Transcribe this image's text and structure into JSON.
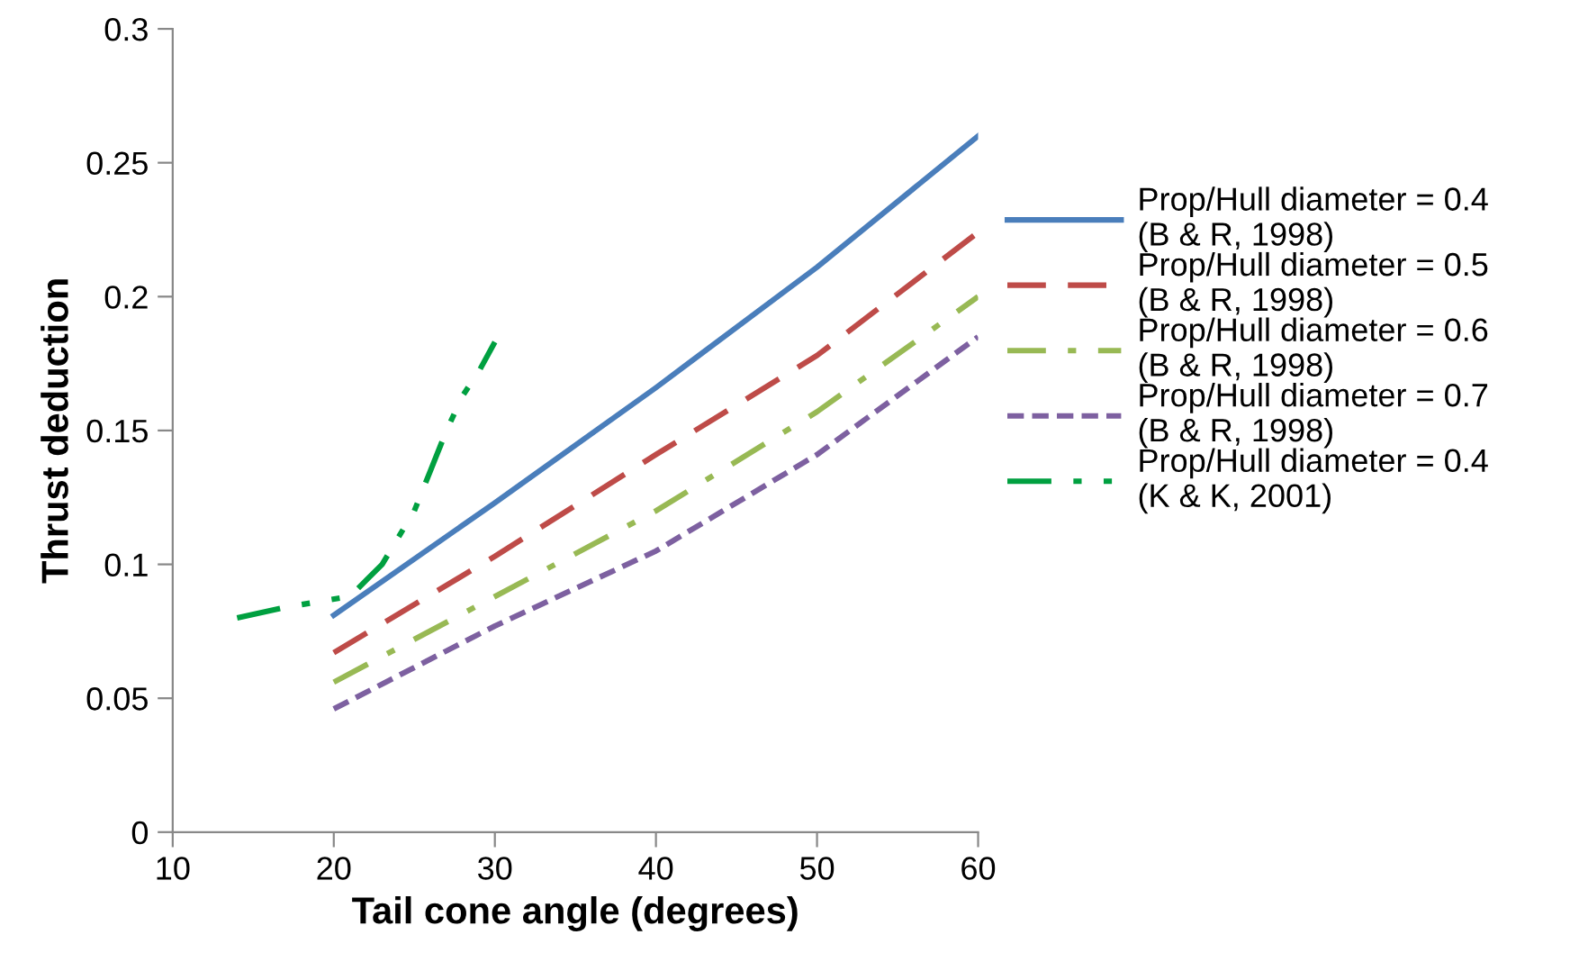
{
  "chart_data": {
    "type": "line",
    "xlabel": "Tail cone angle (degrees)",
    "ylabel": "Thrust deduction",
    "xlim": [
      10,
      60
    ],
    "xticks": [
      10,
      20,
      30,
      40,
      50,
      60
    ],
    "ylim": [
      0,
      0.3
    ],
    "yticks": [
      0,
      0.05,
      0.1,
      0.15,
      0.2,
      0.25,
      0.3
    ],
    "grid": false,
    "legend": "right",
    "marker": "none",
    "series": [
      {
        "name": "Prop/Hull diameter = 0.4\n(B & R, 1998)",
        "color": "#4a7ebb",
        "line_style": "solid",
        "x": [
          20,
          30,
          40,
          50,
          60
        ],
        "values": [
          0.081,
          0.123,
          0.166,
          0.211,
          0.26
        ]
      },
      {
        "name": "Prop/Hull diameter = 0.5\n(B & R, 1998)",
        "color": "#be4b48",
        "line_style": "dashed",
        "x": [
          20,
          30,
          40,
          50,
          60
        ],
        "values": [
          0.067,
          0.103,
          0.141,
          0.178,
          0.224
        ]
      },
      {
        "name": "Prop/Hull diameter = 0.6\n(B & R, 1998)",
        "color": "#98b954",
        "line_style": "dashdot",
        "x": [
          20,
          30,
          40,
          50,
          60
        ],
        "values": [
          0.056,
          0.088,
          0.12,
          0.157,
          0.2
        ]
      },
      {
        "name": "Prop/Hull diameter = 0.7\n(B & R, 1998)",
        "color": "#7d60a0",
        "line_style": "shortdash",
        "x": [
          20,
          30,
          40,
          50,
          60
        ],
        "values": [
          0.046,
          0.077,
          0.105,
          0.141,
          0.185
        ]
      },
      {
        "name": "Prop/Hull diameter = 0.4\n(K & K, 2001)",
        "color": "#00a040",
        "line_style": "dashdotdot",
        "x": [
          14,
          17,
          19,
          21,
          22,
          23,
          24,
          25,
          26,
          27,
          28,
          29,
          30
        ],
        "values": [
          0.08,
          0.084,
          0.086,
          0.088,
          0.094,
          0.1,
          0.11,
          0.12,
          0.135,
          0.15,
          0.163,
          0.172,
          0.183
        ]
      }
    ]
  }
}
